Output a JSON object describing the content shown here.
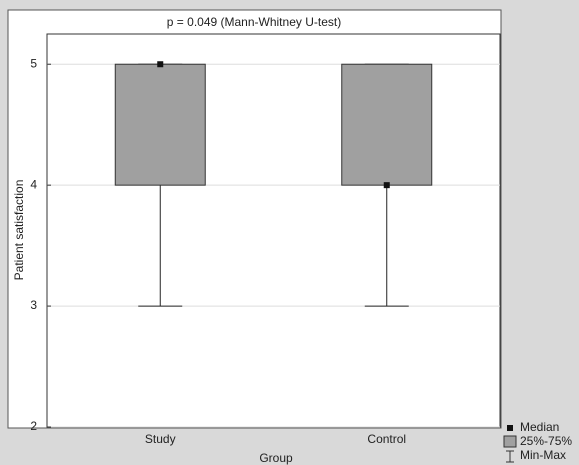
{
  "chart_data": {
    "type": "box",
    "title": "p = 0.049 (Mann-Whitney U-test)",
    "x_label": "Group",
    "y_label": "Patient satisfaction",
    "categories": [
      "Study",
      "Control"
    ],
    "min": [
      3,
      3
    ],
    "q1": [
      4,
      4
    ],
    "median": [
      5,
      4
    ],
    "q3": [
      5,
      5
    ],
    "max": [
      5,
      5
    ],
    "color": "#a0a0a0",
    "ylim": [
      2,
      5.25
    ],
    "yticks": [
      2,
      3,
      4,
      5
    ],
    "grid": true,
    "legend": {
      "median": "Median",
      "box": "25%-75%",
      "whisker": "Min-Max"
    }
  }
}
